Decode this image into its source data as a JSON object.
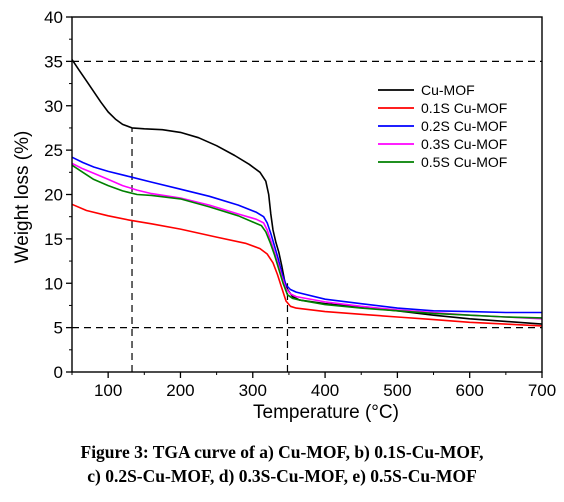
{
  "caption": {
    "line1": "Figure 3: TGA curve of a) Cu-MOF, b) 0.1S-Cu-MOF,",
    "line2": "c) 0.2S-Cu-MOF, d) 0.3S-Cu-MOF, e) 0.5S-Cu-MOF"
  },
  "chart_data": {
    "type": "line",
    "title": "",
    "xlabel": "Temperature (°C)",
    "ylabel": "Weight loss (%)",
    "xlim": [
      50,
      700
    ],
    "ylim": [
      0,
      40
    ],
    "xticks": [
      100,
      200,
      300,
      400,
      500,
      600,
      700
    ],
    "yticks": [
      0,
      5,
      10,
      15,
      20,
      25,
      30,
      35,
      40
    ],
    "grid": false,
    "legend_position": "top-right",
    "reference_lines": [
      {
        "orientation": "horizontal",
        "value": 35,
        "style": "dashed"
      },
      {
        "orientation": "horizontal",
        "value": 5,
        "style": "dashed"
      },
      {
        "orientation": "vertical",
        "value": 133,
        "from": 0,
        "to": 27.5,
        "style": "dashed"
      },
      {
        "orientation": "vertical",
        "value": 348,
        "from": 0,
        "to": 10,
        "style": "dashed"
      }
    ],
    "series": [
      {
        "name": "Cu-MOF",
        "color": "#000000",
        "points": [
          [
            50,
            35.2
          ],
          [
            60,
            34.0
          ],
          [
            70,
            32.8
          ],
          [
            80,
            31.6
          ],
          [
            90,
            30.4
          ],
          [
            100,
            29.3
          ],
          [
            110,
            28.5
          ],
          [
            120,
            27.9
          ],
          [
            133,
            27.5
          ],
          [
            150,
            27.4
          ],
          [
            175,
            27.3
          ],
          [
            200,
            27.0
          ],
          [
            225,
            26.4
          ],
          [
            250,
            25.5
          ],
          [
            275,
            24.4
          ],
          [
            295,
            23.4
          ],
          [
            310,
            22.5
          ],
          [
            318,
            21.5
          ],
          [
            322,
            20.0
          ],
          [
            325,
            17.8
          ],
          [
            328,
            16.0
          ],
          [
            332,
            14.6
          ],
          [
            336,
            13.5
          ],
          [
            340,
            12.0
          ],
          [
            344,
            10.3
          ],
          [
            348,
            9.3
          ],
          [
            355,
            8.5
          ],
          [
            365,
            8.1
          ],
          [
            400,
            7.7
          ],
          [
            450,
            7.3
          ],
          [
            500,
            6.9
          ],
          [
            550,
            6.4
          ],
          [
            600,
            6.0
          ],
          [
            650,
            5.7
          ],
          [
            700,
            5.4
          ]
        ]
      },
      {
        "name": "0.1S Cu-MOF",
        "color": "#ff0000",
        "points": [
          [
            50,
            18.9
          ],
          [
            70,
            18.2
          ],
          [
            100,
            17.6
          ],
          [
            130,
            17.1
          ],
          [
            160,
            16.7
          ],
          [
            200,
            16.1
          ],
          [
            250,
            15.2
          ],
          [
            290,
            14.5
          ],
          [
            310,
            13.9
          ],
          [
            320,
            13.3
          ],
          [
            328,
            12.3
          ],
          [
            334,
            11.0
          ],
          [
            340,
            9.5
          ],
          [
            346,
            8.0
          ],
          [
            352,
            7.4
          ],
          [
            360,
            7.2
          ],
          [
            400,
            6.8
          ],
          [
            450,
            6.5
          ],
          [
            500,
            6.2
          ],
          [
            550,
            5.9
          ],
          [
            600,
            5.6
          ],
          [
            650,
            5.4
          ],
          [
            700,
            5.2
          ]
        ]
      },
      {
        "name": "0.2S Cu-MOF",
        "color": "#0000ff",
        "points": [
          [
            50,
            24.2
          ],
          [
            65,
            23.6
          ],
          [
            80,
            23.1
          ],
          [
            100,
            22.6
          ],
          [
            130,
            22.0
          ],
          [
            160,
            21.4
          ],
          [
            200,
            20.6
          ],
          [
            240,
            19.8
          ],
          [
            280,
            18.8
          ],
          [
            305,
            18.0
          ],
          [
            315,
            17.5
          ],
          [
            320,
            16.8
          ],
          [
            325,
            15.6
          ],
          [
            330,
            14.2
          ],
          [
            335,
            12.8
          ],
          [
            340,
            11.2
          ],
          [
            346,
            9.8
          ],
          [
            352,
            9.3
          ],
          [
            360,
            9.0
          ],
          [
            400,
            8.2
          ],
          [
            450,
            7.7
          ],
          [
            500,
            7.2
          ],
          [
            550,
            6.9
          ],
          [
            600,
            6.8
          ],
          [
            650,
            6.7
          ],
          [
            700,
            6.7
          ]
        ]
      },
      {
        "name": "0.3S Cu-MOF",
        "color": "#ff00ff",
        "points": [
          [
            50,
            23.5
          ],
          [
            65,
            22.9
          ],
          [
            80,
            22.4
          ],
          [
            100,
            21.7
          ],
          [
            120,
            21.0
          ],
          [
            140,
            20.5
          ],
          [
            160,
            20.1
          ],
          [
            200,
            19.6
          ],
          [
            240,
            18.8
          ],
          [
            280,
            17.8
          ],
          [
            305,
            17.2
          ],
          [
            315,
            16.8
          ],
          [
            320,
            16.0
          ],
          [
            325,
            14.8
          ],
          [
            330,
            13.5
          ],
          [
            335,
            12.2
          ],
          [
            340,
            10.8
          ],
          [
            346,
            9.4
          ],
          [
            352,
            8.8
          ],
          [
            360,
            8.5
          ],
          [
            400,
            7.9
          ],
          [
            450,
            7.4
          ],
          [
            500,
            7.0
          ],
          [
            550,
            6.7
          ],
          [
            600,
            6.4
          ],
          [
            650,
            6.2
          ],
          [
            700,
            6.0
          ]
        ]
      },
      {
        "name": "0.5S Cu-MOF",
        "color": "#008000",
        "points": [
          [
            50,
            23.3
          ],
          [
            65,
            22.5
          ],
          [
            80,
            21.7
          ],
          [
            100,
            21.0
          ],
          [
            120,
            20.4
          ],
          [
            140,
            20.0
          ],
          [
            160,
            19.9
          ],
          [
            200,
            19.5
          ],
          [
            240,
            18.6
          ],
          [
            280,
            17.6
          ],
          [
            300,
            16.9
          ],
          [
            312,
            16.5
          ],
          [
            318,
            15.8
          ],
          [
            324,
            14.6
          ],
          [
            330,
            13.2
          ],
          [
            336,
            11.6
          ],
          [
            342,
            10.0
          ],
          [
            348,
            8.7
          ],
          [
            355,
            8.3
          ],
          [
            365,
            8.1
          ],
          [
            400,
            7.6
          ],
          [
            450,
            7.2
          ],
          [
            500,
            6.9
          ],
          [
            550,
            6.6
          ],
          [
            600,
            6.4
          ],
          [
            650,
            6.2
          ],
          [
            700,
            6.1
          ]
        ]
      }
    ]
  }
}
